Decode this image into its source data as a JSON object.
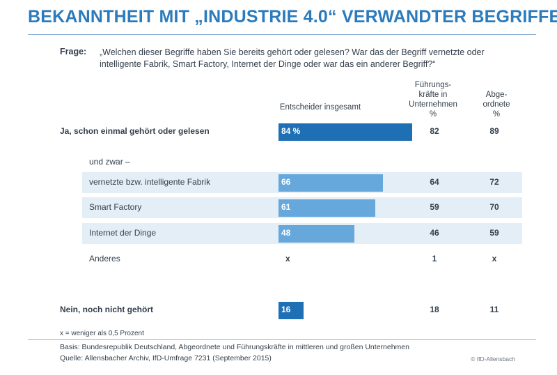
{
  "title": "BEKANNTHEIT MIT „INDUSTRIE 4.0“ VERWANDTER BEGRIFFE",
  "question": {
    "label": "Frage:",
    "text": "„Welchen dieser Begriffe haben Sie bereits gehört oder gelesen? War das der Begriff vernetzte oder intelligente Fabrik, Smart Factory, Internet der Dinge oder war das ein anderer Begriff?“"
  },
  "colors": {
    "accent": "#2b7bbd",
    "bar_dark": "#1f6fb5",
    "bar_light": "#66a8dc",
    "band": "#e4eef7"
  },
  "chart_data": {
    "type": "bar",
    "title": "Bekanntheit mit „Industrie 4.0“ verwandter Begriffe",
    "unit": "%",
    "columns": {
      "total": "Entscheider insgesamt",
      "fuehrung": "Führungs-\nkräfte in\nUnternehmen\n%",
      "abgeordnete": "Abge-\nordnete\n%"
    },
    "subheader": "und zwar –",
    "categories": [
      "Ja, schon einmal gehört oder gelesen",
      "vernetzte bzw. intelligente Fabrik",
      "Smart Factory",
      "Internet der Dinge",
      "Anderes",
      "Nein, noch nicht gehört"
    ],
    "series": [
      {
        "name": "Entscheider insgesamt",
        "values": [
          84,
          66,
          61,
          48,
          null,
          16
        ],
        "labels": [
          "84 %",
          "66",
          "61",
          "48",
          "x",
          "16"
        ]
      },
      {
        "name": "Führungskräfte in Unternehmen",
        "values": [
          82,
          64,
          59,
          46,
          1,
          18
        ],
        "labels": [
          "82",
          "64",
          "59",
          "46",
          "1",
          "18"
        ]
      },
      {
        "name": "Abgeordnete",
        "values": [
          89,
          72,
          70,
          59,
          null,
          11
        ],
        "labels": [
          "89",
          "72",
          "70",
          "59",
          "x",
          "11"
        ]
      }
    ],
    "xlim": [
      0,
      100
    ]
  },
  "footnote": "x = weniger als 0,5 Prozent",
  "basis": "Basis: Bundesrepublik Deutschland, Abgeordnete und Führungskräfte in mittleren und großen Unternehmen",
  "source": "Quelle: Allensbacher Archiv, IfD-Umfrage 7231 (September 2015)",
  "credit": "© IfD-Allensbach"
}
